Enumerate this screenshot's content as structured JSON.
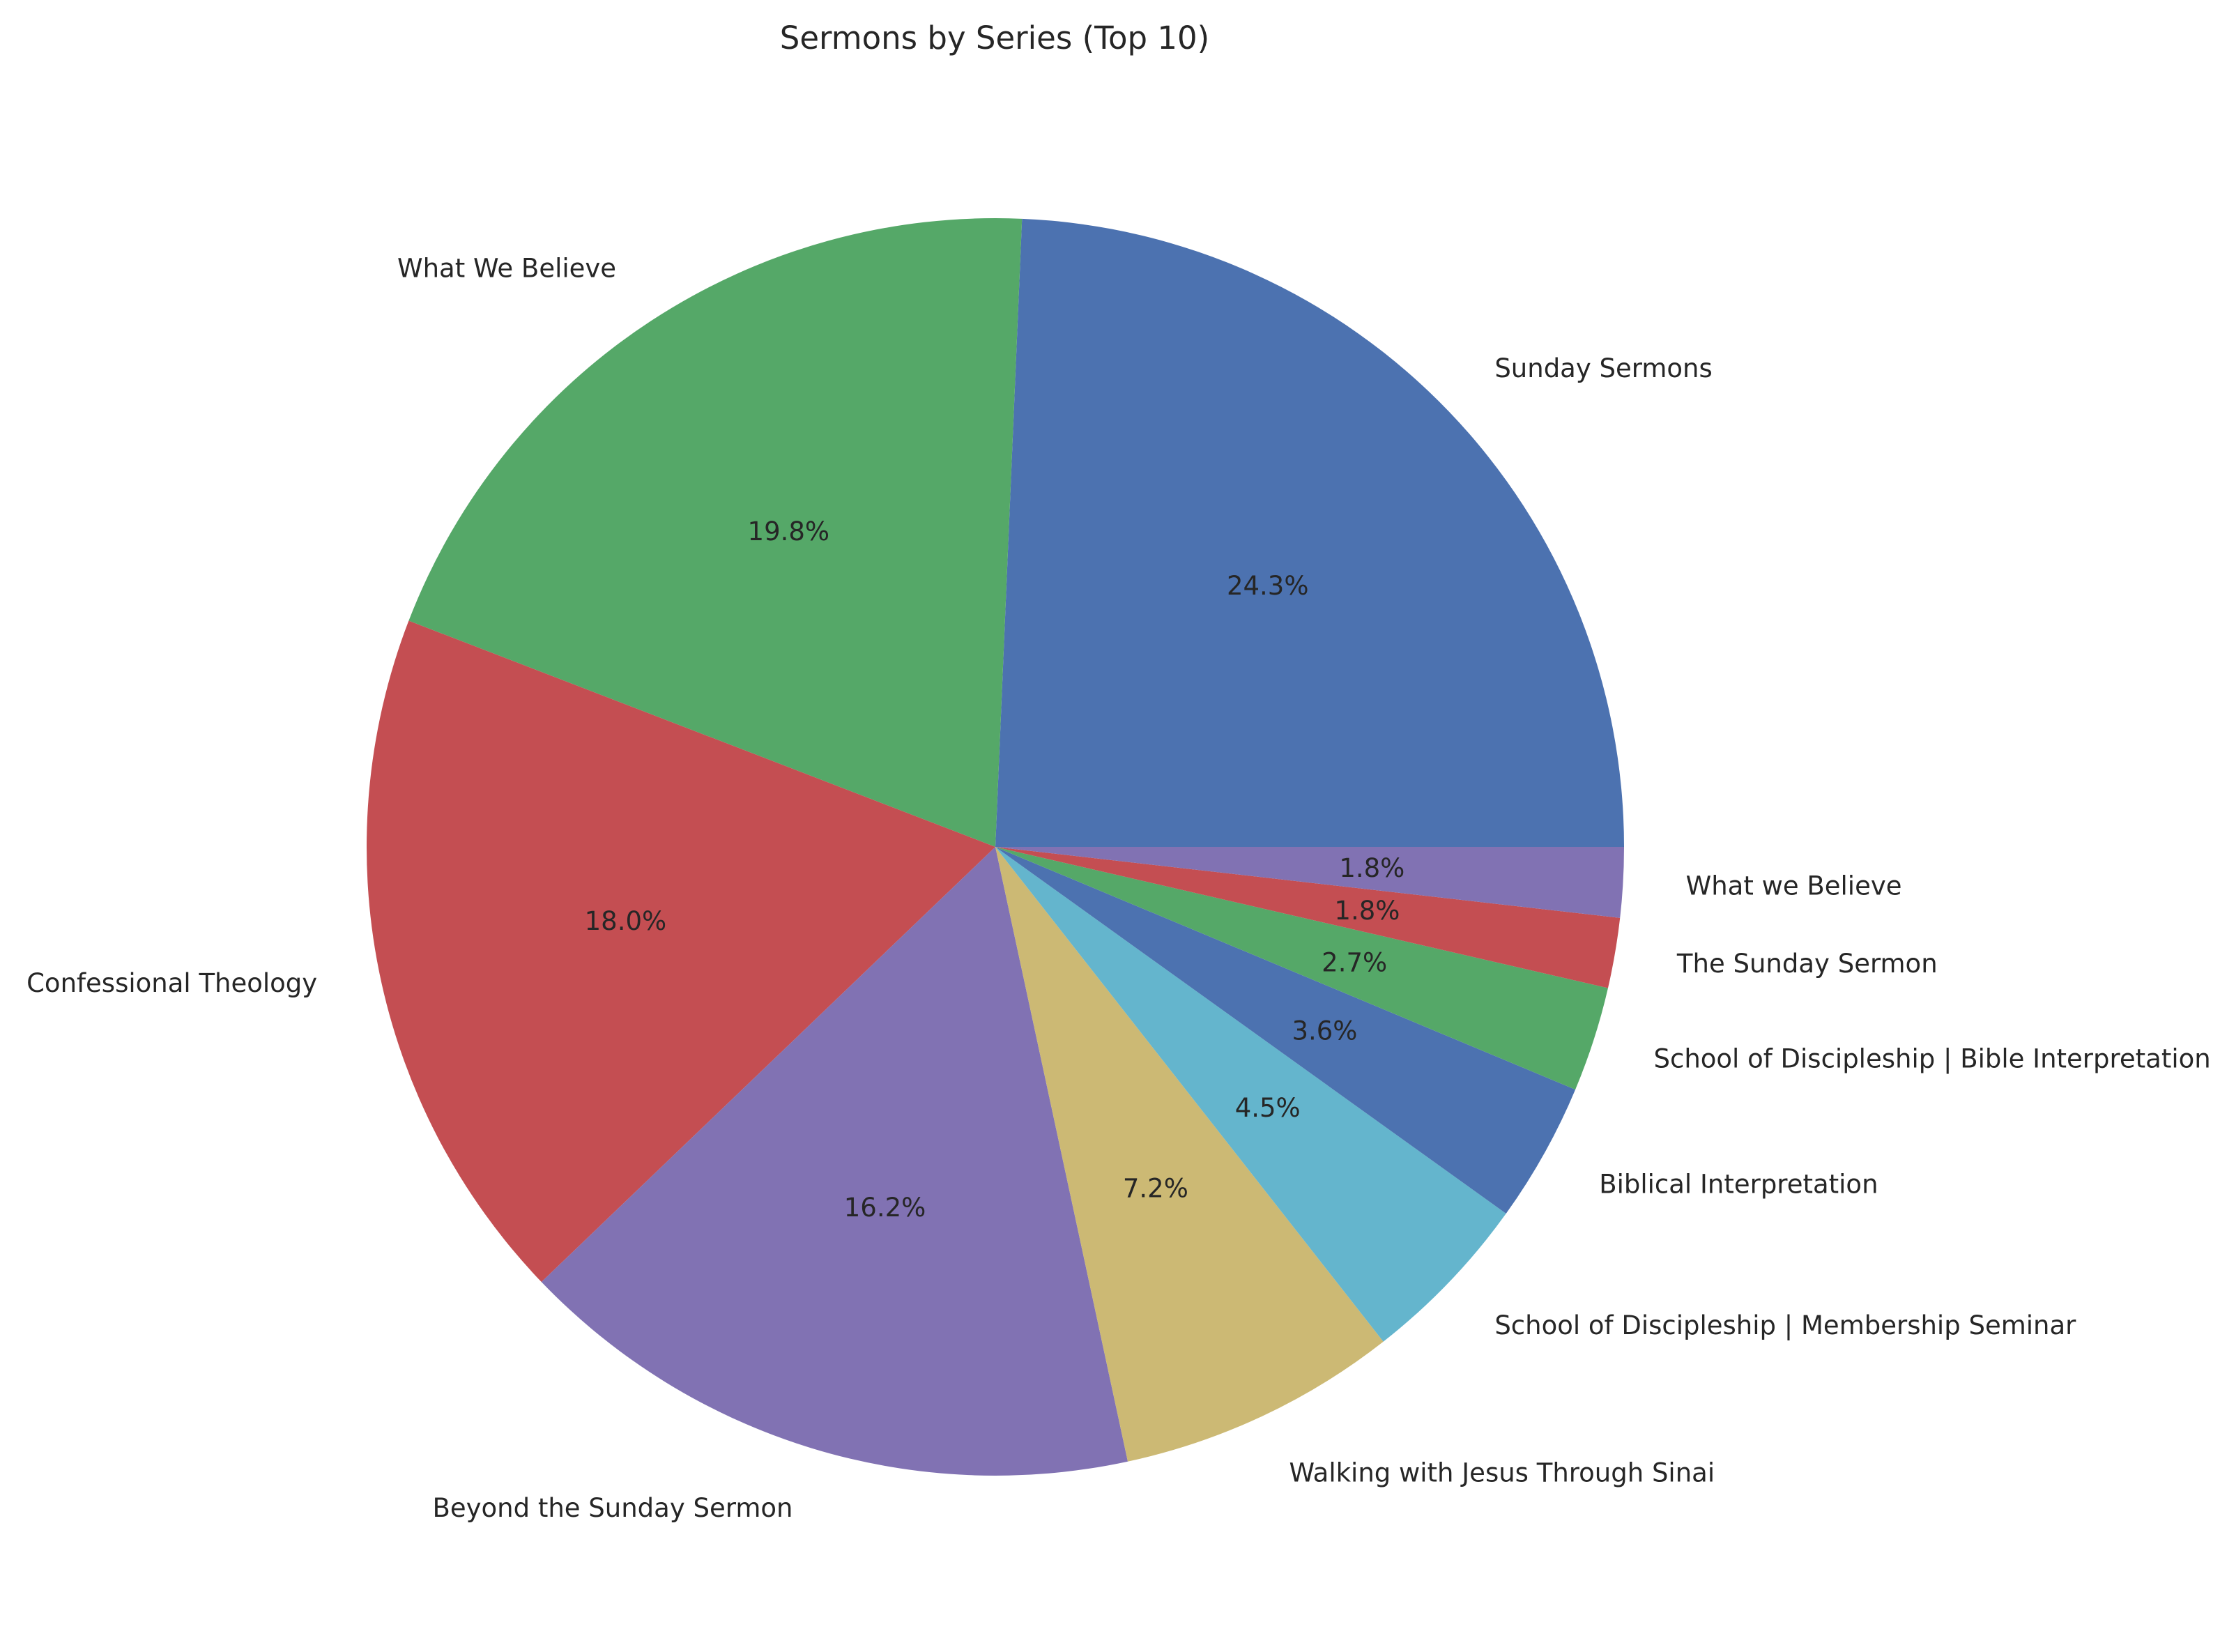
{
  "chart_data": {
    "type": "pie",
    "title": "Sermons by Series (Top 10)",
    "slices": [
      {
        "label": "Sunday Sermons",
        "value": 24.3,
        "pct_label": "24.3%",
        "color": "#4c72b0"
      },
      {
        "label": "What We Believe",
        "value": 19.8,
        "pct_label": "19.8%",
        "color": "#55a868"
      },
      {
        "label": "Confessional Theology",
        "value": 18.0,
        "pct_label": "18.0%",
        "color": "#c44e52"
      },
      {
        "label": "Beyond the Sunday Sermon",
        "value": 16.2,
        "pct_label": "16.2%",
        "color": "#8172b3"
      },
      {
        "label": "Walking with Jesus Through Sinai",
        "value": 7.2,
        "pct_label": "7.2%",
        "color": "#ccb974"
      },
      {
        "label": "School of Discipleship | Membership Seminar",
        "value": 4.5,
        "pct_label": "4.5%",
        "color": "#64b5cd"
      },
      {
        "label": "Biblical Interpretation",
        "value": 3.6,
        "pct_label": "3.6%",
        "color": "#4c72b0"
      },
      {
        "label": "School of Discipleship | Bible Interpretation",
        "value": 2.7,
        "pct_label": "2.7%",
        "color": "#55a868"
      },
      {
        "label": "The Sunday Sermon",
        "value": 1.8,
        "pct_label": "1.8%",
        "color": "#c44e52"
      },
      {
        "label": "What we Believe",
        "value": 1.8,
        "pct_label": "1.8%",
        "color": "#8172b3"
      }
    ],
    "start_angle_deg": 0,
    "direction": "counterclockwise",
    "legend": "none"
  }
}
